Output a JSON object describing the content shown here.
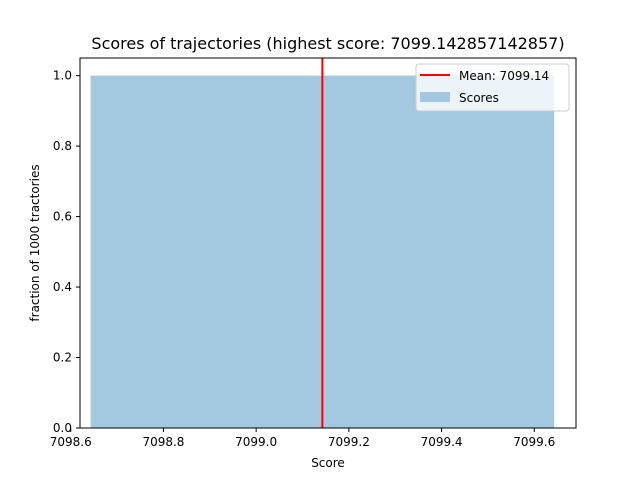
{
  "chart_data": {
    "type": "bar",
    "title": "Scores of trajectories (highest score: 7099.142857142857)",
    "xlabel": "Score",
    "ylabel": "fraction of 1000 tractories",
    "xlim": [
      7098.62,
      7099.69
    ],
    "ylim": [
      0.0,
      1.05
    ],
    "x_ticks": [
      "7098.6",
      "7098.8",
      "7099.0",
      "7099.2",
      "7099.4",
      "7099.6"
    ],
    "x_tick_values": [
      7098.6,
      7098.8,
      7099.0,
      7099.2,
      7099.4,
      7099.6
    ],
    "y_ticks": [
      "0.0",
      "0.2",
      "0.4",
      "0.6",
      "0.8",
      "1.0"
    ],
    "y_tick_values": [
      0.0,
      0.2,
      0.4,
      0.6,
      0.8,
      1.0
    ],
    "bins": [
      {
        "x0": 7098.642857142857,
        "x1": 7099.642857142857,
        "value": 1.0
      }
    ],
    "mean": {
      "value": 7099.142857142857,
      "label": "Mean: 7099.14"
    },
    "series": [
      {
        "name": "Mean: 7099.14",
        "kind": "line",
        "color": "#ff0000"
      },
      {
        "name": "Scores",
        "kind": "bar",
        "color": "#a5c8e1"
      }
    ],
    "legend_position": "top-right",
    "grid": false
  }
}
